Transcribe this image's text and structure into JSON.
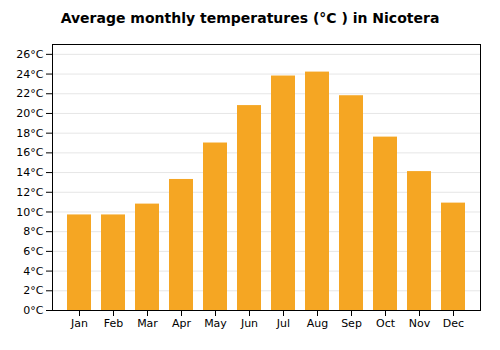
{
  "chart_data": {
    "type": "bar",
    "title": "Average monthly temperatures (°C ) in Nicotera",
    "categories": [
      "Jan",
      "Feb",
      "Mar",
      "Apr",
      "May",
      "Jun",
      "Jul",
      "Aug",
      "Sep",
      "Oct",
      "Nov",
      "Dec"
    ],
    "values": [
      9.7,
      9.7,
      10.8,
      13.3,
      17.0,
      20.8,
      23.8,
      24.2,
      21.8,
      17.6,
      14.1,
      10.9
    ],
    "color": "#F5A623",
    "ylim": [
      0,
      27
    ],
    "yticks": [
      {
        "value": 0,
        "label": "0°C"
      },
      {
        "value": 2,
        "label": "2°C"
      },
      {
        "value": 4,
        "label": "4°C"
      },
      {
        "value": 6,
        "label": "6°C"
      },
      {
        "value": 8,
        "label": "8°C"
      },
      {
        "value": 10,
        "label": "10°C"
      },
      {
        "value": 12,
        "label": "12°C"
      },
      {
        "value": 14,
        "label": "14°C"
      },
      {
        "value": 16,
        "label": "16°C"
      },
      {
        "value": 18,
        "label": "18°C"
      },
      {
        "value": 20,
        "label": "20°C"
      },
      {
        "value": 22,
        "label": "22°C"
      },
      {
        "value": 24,
        "label": "24°C"
      },
      {
        "value": 26,
        "label": "26°C"
      }
    ],
    "grid": true
  }
}
